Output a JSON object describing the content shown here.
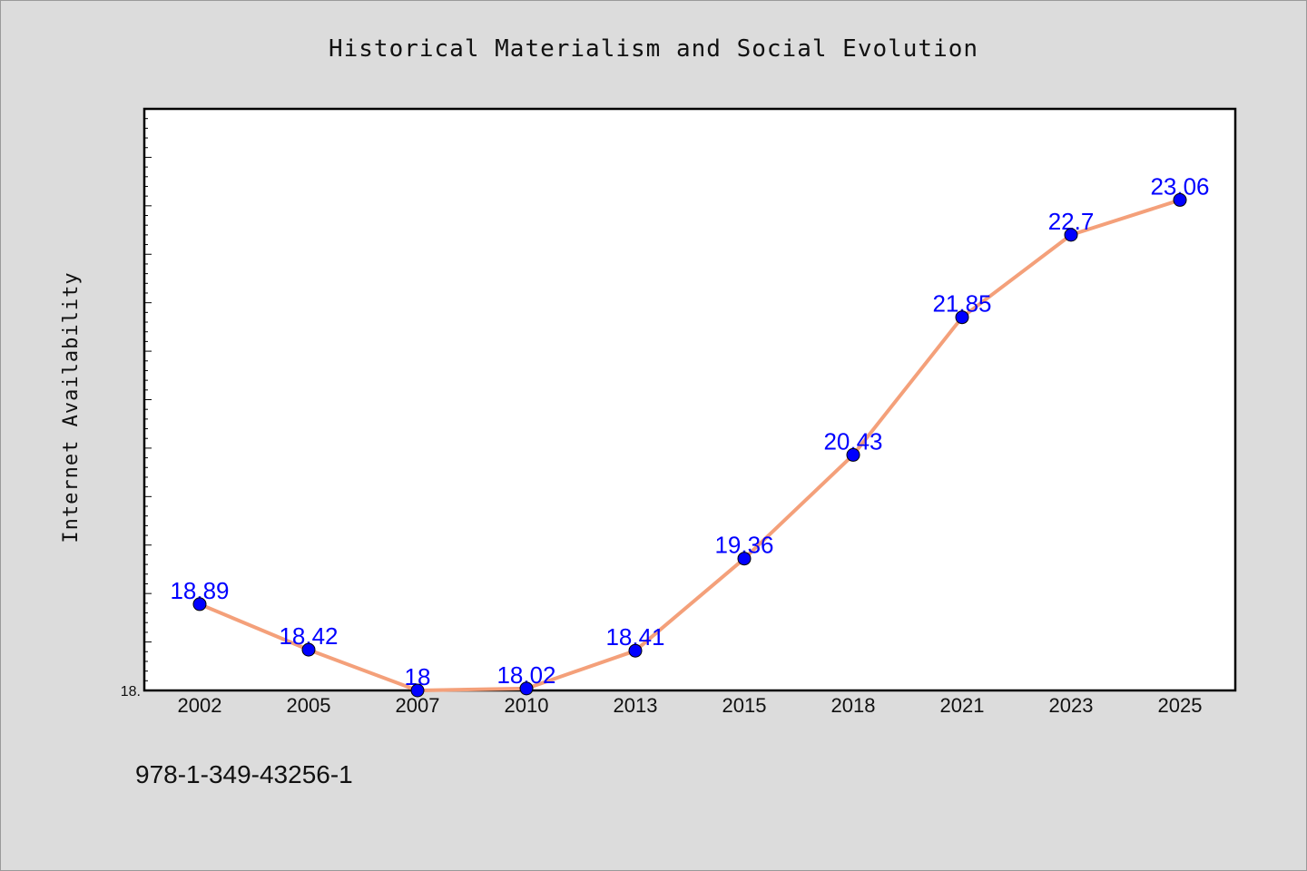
{
  "chart_data": {
    "type": "line",
    "title": "Historical Materialism and Social Evolution",
    "xlabel": "",
    "ylabel": "Internet Availability",
    "categories": [
      "2002",
      "2005",
      "2007",
      "2010",
      "2013",
      "2015",
      "2018",
      "2021",
      "2023",
      "2025"
    ],
    "values": [
      18.89,
      18.42,
      18,
      18.02,
      18.41,
      19.36,
      20.43,
      21.85,
      22.7,
      23.06
    ],
    "data_labels": [
      "18.89",
      "18.42",
      "18",
      "18.02",
      "18.41",
      "19.36",
      "20.43",
      "21.85",
      "22.7",
      "23.06"
    ],
    "ylim": [
      18.0,
      24.0
    ],
    "y_tick_labels": [
      {
        "value": 18.0,
        "label": "18."
      }
    ],
    "line_color": "#f4a07a",
    "marker_color": "#0000ff",
    "label_color": "#0000ff",
    "grid": false,
    "legend": "none"
  },
  "footer": {
    "isbn": "978-1-349-43256-1"
  }
}
